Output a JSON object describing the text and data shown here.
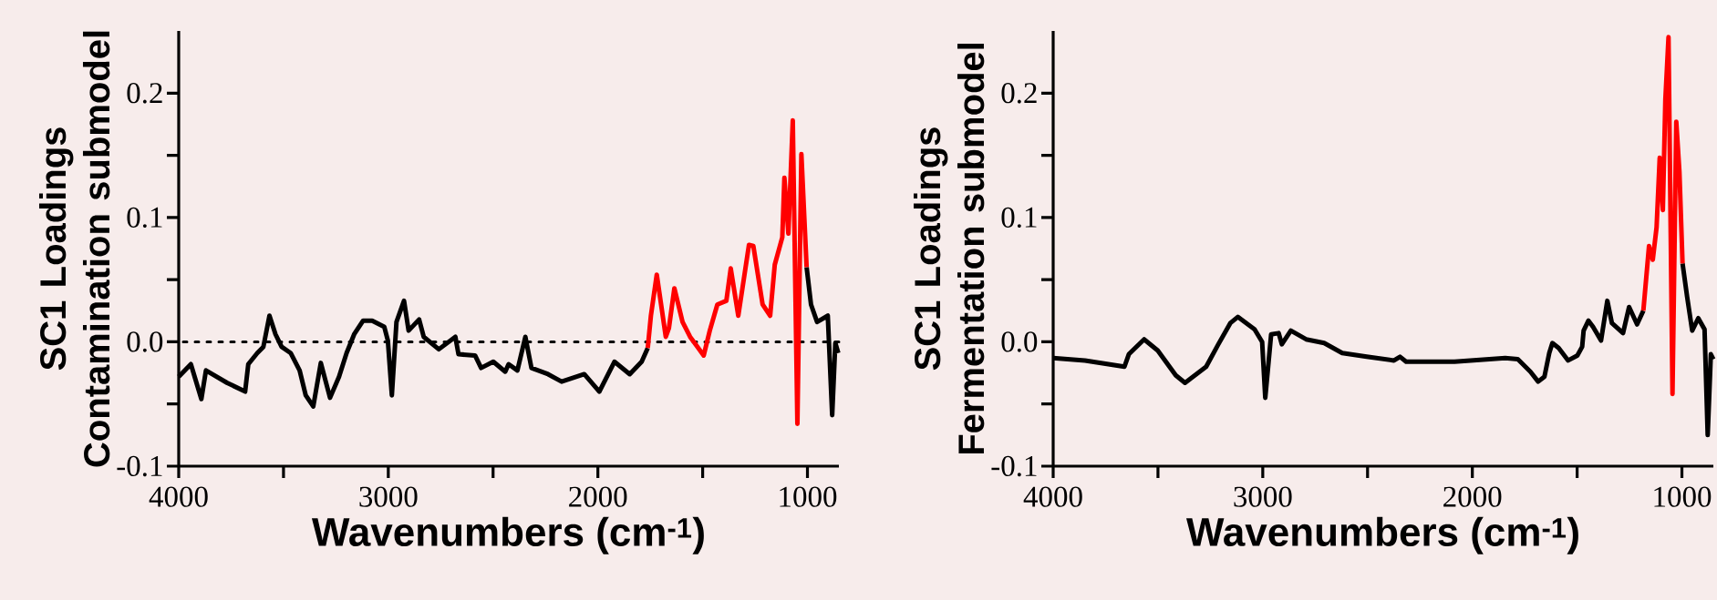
{
  "chart_data": [
    {
      "type": "line",
      "xlabel": "Wavenumbers (cm$^{-1}$)",
      "ylabel": "SC1 Loadings Contamination submodel",
      "xlim": [
        4000,
        850
      ],
      "ylim": [
        -0.1,
        0.25
      ],
      "xticks": [
        4000,
        {
          "value": 3500,
          "label": null
        },
        3000,
        {
          "value": 2500,
          "label": null
        },
        2000,
        {
          "value": 1500,
          "label": null
        },
        1000
      ],
      "yticks": [
        {
          "value": -0.1,
          "label": "-0.1"
        },
        {
          "value": -0.05,
          "label": null
        },
        {
          "value": 0,
          "label": "0.0"
        },
        {
          "value": 0.05,
          "label": null
        },
        {
          "value": 0.1,
          "label": "0.1"
        },
        {
          "value": 0.15,
          "label": null
        },
        {
          "value": 0.2,
          "label": "0.2"
        }
      ],
      "ref_lines": [
        {
          "axis": "y",
          "value": 0,
          "line_style": "dotted"
        }
      ],
      "series": [
        {
          "color": "#000000",
          "x": [
            4000,
            3942,
            3892,
            3870,
            3769,
            3683,
            3668,
            3625,
            3596,
            3567,
            3538,
            3509,
            3466,
            3423,
            3394,
            3358,
            3322,
            3278,
            3235,
            3199,
            3163,
            3120,
            3077,
            3019,
            3002,
            2983,
            2961,
            2925,
            2903,
            2853,
            2831,
            2759,
            2680,
            2665,
            2586,
            2557,
            2499,
            2442,
            2426,
            2384,
            2346,
            2317,
            2238,
            2173,
            2065,
            1993,
            1921,
            1848,
            1791,
            1762,
            1400,
            1004,
            983,
            954,
            903,
            882,
            867,
            853
          ],
          "values": [
            -0.028,
            -0.018,
            -0.046,
            -0.023,
            -0.033,
            -0.04,
            -0.018,
            -0.009,
            -0.004,
            0.021,
            0.006,
            -0.004,
            -0.009,
            -0.023,
            -0.043,
            -0.052,
            -0.017,
            -0.045,
            -0.028,
            -0.009,
            0.006,
            0.017,
            0.017,
            0.012,
            0.001,
            -0.043,
            0.016,
            0.033,
            0.009,
            0.018,
            0.004,
            -0.006,
            0.004,
            -0.01,
            -0.011,
            -0.021,
            -0.016,
            -0.024,
            -0.018,
            -0.023,
            0.004,
            -0.021,
            -0.026,
            -0.032,
            -0.026,
            -0.04,
            -0.016,
            -0.026,
            -0.016,
            -0.005,
            null,
            0.06,
            0.03,
            0.016,
            0.021,
            -0.059,
            -0.001,
            -0.009
          ]
        },
        {
          "color": "#ff0000",
          "x": [
            1762,
            1747,
            1719,
            1676,
            1661,
            1635,
            1596,
            1560,
            1495,
            1466,
            1430,
            1387,
            1366,
            1330,
            1279,
            1258,
            1214,
            1178,
            1156,
            1120,
            1110,
            1091,
            1070,
            1048,
            1029,
            1004
          ],
          "values": [
            -0.005,
            0.021,
            0.054,
            0.004,
            0.011,
            0.043,
            0.016,
            0.004,
            -0.011,
            0.009,
            0.03,
            0.033,
            0.059,
            0.021,
            0.078,
            0.077,
            0.03,
            0.021,
            0.062,
            0.084,
            0.132,
            0.087,
            0.178,
            -0.066,
            0.151,
            0.06
          ]
        }
      ]
    },
    {
      "type": "line",
      "xlabel": "Wavenumbers (cm$^{-1}$)",
      "ylabel": "SC1 Loadings Fermentation submodel",
      "xlim": [
        4000,
        850
      ],
      "ylim": [
        -0.1,
        0.25
      ],
      "xticks": [
        4000,
        {
          "value": 3500,
          "label": null
        },
        3000,
        {
          "value": 2500,
          "label": null
        },
        2000,
        {
          "value": 1500,
          "label": null
        },
        1000
      ],
      "yticks": [
        {
          "value": -0.1,
          "label": "-0.1"
        },
        {
          "value": -0.05,
          "label": null
        },
        {
          "value": 0,
          "label": "0.0"
        },
        {
          "value": 0.05,
          "label": null
        },
        {
          "value": 0.1,
          "label": "0.1"
        },
        {
          "value": 0.15,
          "label": null
        },
        {
          "value": 0.2,
          "label": "0.2"
        }
      ],
      "series": [
        {
          "color": "#000000",
          "x": [
            4000,
            3848,
            3660,
            3639,
            3566,
            3501,
            3415,
            3371,
            3270,
            3212,
            3155,
            3119,
            3039,
            3003,
            2988,
            2960,
            2924,
            2909,
            2866,
            2793,
            2707,
            2621,
            2504,
            2374,
            2345,
            2316,
            2085,
            1843,
            1783,
            1723,
            1686,
            1656,
            1633,
            1618,
            1588,
            1543,
            1499,
            1476,
            1469,
            1446,
            1424,
            1386,
            1356,
            1334,
            1281,
            1252,
            1214,
            1184,
            1100,
            997,
            975,
            951,
            922,
            892,
            877,
            862,
            850
          ],
          "values": [
            -0.013,
            -0.015,
            -0.02,
            -0.01,
            0.002,
            -0.007,
            -0.027,
            -0.033,
            -0.02,
            -0.002,
            0.015,
            0.02,
            0.01,
            0.0,
            -0.045,
            0.006,
            0.007,
            -0.002,
            0.009,
            0.002,
            -0.001,
            -0.009,
            -0.012,
            -0.015,
            -0.012,
            -0.016,
            -0.016,
            -0.013,
            -0.014,
            -0.024,
            -0.032,
            -0.028,
            -0.009,
            -0.001,
            -0.005,
            -0.015,
            -0.011,
            -0.004,
            0.009,
            0.017,
            0.012,
            0.001,
            0.033,
            0.015,
            0.007,
            0.028,
            0.014,
            0.025,
            null,
            0.063,
            0.036,
            0.009,
            0.019,
            0.01,
            -0.075,
            -0.01,
            -0.014
          ]
        },
        {
          "color": "#ff0000",
          "x": [
            1184,
            1157,
            1139,
            1121,
            1106,
            1091,
            1079,
            1064,
            1045,
            1027,
            1012,
            997
          ],
          "values": [
            0.025,
            0.077,
            0.066,
            0.092,
            0.148,
            0.106,
            0.195,
            0.245,
            -0.042,
            0.177,
            0.137,
            0.063
          ]
        }
      ]
    }
  ]
}
